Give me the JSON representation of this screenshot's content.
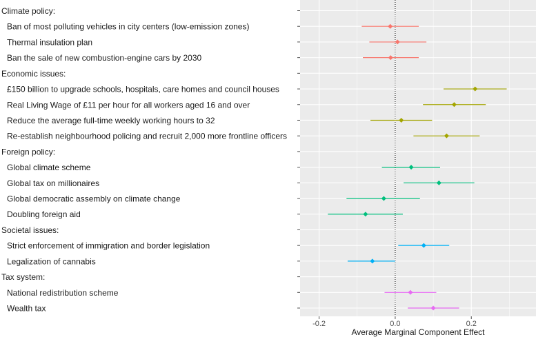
{
  "chart_data": {
    "type": "dot-errorbar",
    "xlabel": "Average Marginal Component Effect",
    "xlim": [
      -0.25,
      0.37
    ],
    "xticks": [
      {
        "value": -0.2,
        "label": "-0.2"
      },
      {
        "value": 0.0,
        "label": "0.0"
      },
      {
        "value": 0.2,
        "label": "0.2"
      }
    ],
    "reference_line": 0,
    "grid": true,
    "rows": [
      {
        "label": "Climate policy:",
        "header": true
      },
      {
        "label": "Ban of most polluting vehicles in city centers (low-emission zones)",
        "group": "climate",
        "estimate": -0.013,
        "lower": -0.088,
        "upper": 0.062
      },
      {
        "label": "Thermal insulation plan",
        "group": "climate",
        "estimate": 0.006,
        "lower": -0.068,
        "upper": 0.082
      },
      {
        "label": "Ban the sale of new combustion-engine cars by 2030",
        "group": "climate",
        "estimate": -0.012,
        "lower": -0.085,
        "upper": 0.062
      },
      {
        "label": "Economic issues:",
        "header": true
      },
      {
        "label": "£150 billion to upgrade schools, hospitals, care homes and council houses",
        "group": "economic",
        "estimate": 0.21,
        "lower": 0.127,
        "upper": 0.293
      },
      {
        "label": "Real Living Wage of £11 per hour for all workers aged 16 and over",
        "group": "economic",
        "estimate": 0.155,
        "lower": 0.073,
        "upper": 0.238
      },
      {
        "label": "Reduce the average full-time weekly working hours to 32",
        "group": "economic",
        "estimate": 0.016,
        "lower": -0.065,
        "upper": 0.097
      },
      {
        "label": "Re-establish neighbourhood policing and recruit 2,000 more frontline officers",
        "group": "economic",
        "estimate": 0.135,
        "lower": 0.048,
        "upper": 0.222
      },
      {
        "label": "Foreign policy:",
        "header": true
      },
      {
        "label": "Global climate scheme",
        "group": "foreign",
        "estimate": 0.042,
        "lower": -0.035,
        "upper": 0.118
      },
      {
        "label": "Global tax on millionaires",
        "group": "foreign",
        "estimate": 0.115,
        "lower": 0.022,
        "upper": 0.208
      },
      {
        "label": "Global democratic assembly on climate change",
        "group": "foreign",
        "estimate": -0.03,
        "lower": -0.128,
        "upper": 0.065
      },
      {
        "label": "Doubling foreign aid",
        "group": "foreign",
        "estimate": -0.078,
        "lower": -0.177,
        "upper": 0.02
      },
      {
        "label": "Societal issues:",
        "header": true
      },
      {
        "label": "Strict enforcement of immigration and border legislation",
        "group": "societal",
        "estimate": 0.075,
        "lower": 0.008,
        "upper": 0.142
      },
      {
        "label": "Legalization of cannabis",
        "group": "societal",
        "estimate": -0.06,
        "lower": -0.125,
        "upper": 0.0
      },
      {
        "label": "Tax system:",
        "header": true
      },
      {
        "label": "National redistribution scheme",
        "group": "tax",
        "estimate": 0.04,
        "lower": -0.028,
        "upper": 0.108
      },
      {
        "label": "Wealth tax",
        "group": "tax",
        "estimate": 0.1,
        "lower": 0.033,
        "upper": 0.168
      }
    ],
    "group_colors": {
      "climate": "#F8766D",
      "economic": "#A3A500",
      "foreign": "#00BF7D",
      "societal": "#00B0F6",
      "tax": "#E76BF3"
    },
    "panel_background": "#EBEBEB",
    "grid_color": "#FFFFFF"
  }
}
